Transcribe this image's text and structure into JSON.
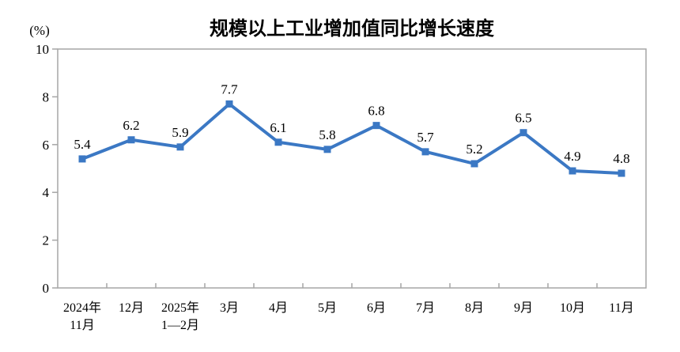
{
  "chart_data": {
    "type": "line",
    "title": "规模以上工业增加值同比增长速度",
    "unit_label": "(%)",
    "categories": [
      [
        "2024年",
        "11月"
      ],
      [
        "12月"
      ],
      [
        "2025年",
        "1—2月"
      ],
      [
        "3月"
      ],
      [
        "4月"
      ],
      [
        "5月"
      ],
      [
        "6月"
      ],
      [
        "7月"
      ],
      [
        "8月"
      ],
      [
        "9月"
      ],
      [
        "10月"
      ],
      [
        "11月"
      ]
    ],
    "values": [
      5.4,
      6.2,
      5.9,
      7.7,
      6.1,
      5.8,
      6.8,
      5.7,
      5.2,
      6.5,
      4.9,
      4.8
    ],
    "ylim": [
      0,
      10
    ],
    "yticks": [
      0,
      2,
      4,
      6,
      8,
      10
    ],
    "grid": false,
    "legend": "none",
    "marker": "square",
    "line_color": "#3B78C4",
    "axis_color": "#A6A6A6",
    "text_color": "#000000",
    "background_color": "#FFFFFF"
  }
}
